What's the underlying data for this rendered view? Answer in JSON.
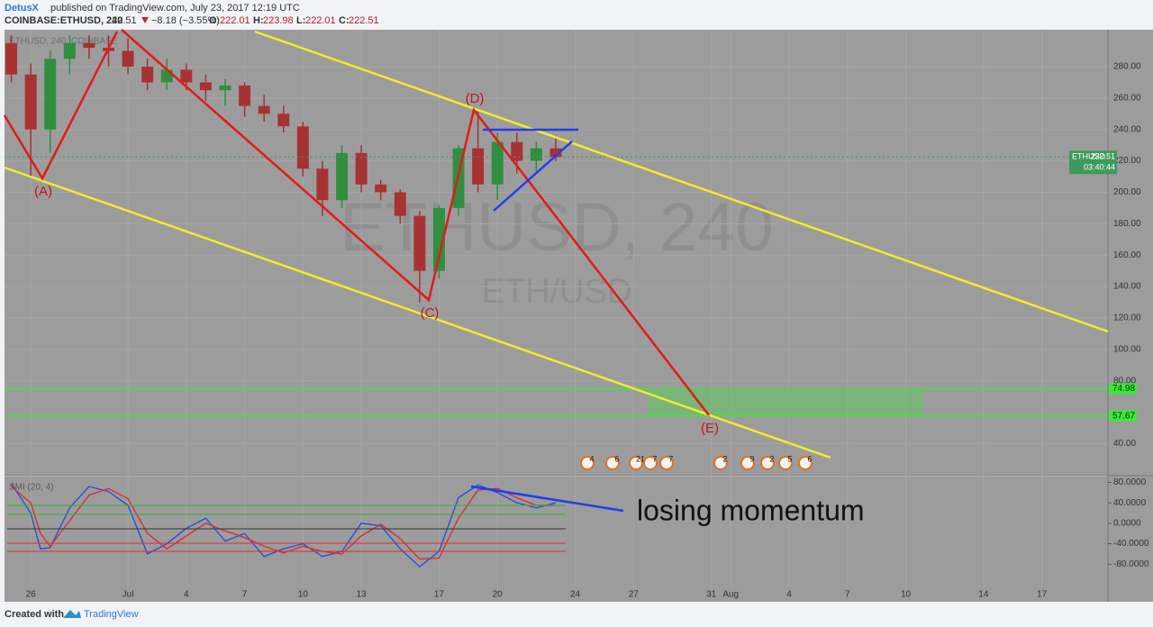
{
  "header": {
    "author": "DetusX",
    "published": "published on TradingView.com, July 23, 2017 12:19 UTC",
    "symbol": "COINBASE:ETHUSD, 240",
    "last": "222.51",
    "change": "−8.18 (−3.55%)",
    "o_label": "O:",
    "o": "222.01",
    "h_label": "H:",
    "h": "223.98",
    "l_label": "L:",
    "l": "222.01",
    "c_label": "C:",
    "c": "222.51"
  },
  "chart_data": [
    {
      "type": "candlestick",
      "legend": "ETHUSD, 240, COINBASE",
      "watermark": "ETHUSD, 240",
      "watermark_sub": "ETH/USD",
      "x": [
        -1,
        0,
        1,
        2,
        3,
        4,
        5,
        6,
        7,
        8,
        9,
        10,
        11,
        12,
        13,
        14,
        15,
        16,
        17,
        18,
        19,
        20,
        21,
        22,
        23,
        24,
        25,
        26,
        27
      ],
      "open": [
        295,
        275,
        240,
        285,
        295,
        292,
        290,
        280,
        270,
        278,
        270,
        265,
        268,
        255,
        250,
        242,
        215,
        195,
        225,
        205,
        200,
        185,
        150,
        190,
        228,
        205,
        232,
        220,
        228
      ],
      "high": [
        300,
        282,
        290,
        300,
        300,
        300,
        298,
        285,
        285,
        282,
        275,
        272,
        270,
        262,
        255,
        245,
        220,
        230,
        230,
        208,
        202,
        188,
        192,
        230,
        253,
        238,
        238,
        232,
        236
      ],
      "low": [
        270,
        210,
        225,
        275,
        285,
        280,
        275,
        265,
        265,
        265,
        258,
        255,
        248,
        245,
        238,
        210,
        185,
        190,
        200,
        195,
        180,
        130,
        145,
        185,
        200,
        195,
        212,
        212,
        220
      ],
      "close": [
        275,
        240,
        285,
        295,
        292,
        290,
        280,
        270,
        278,
        270,
        265,
        268,
        255,
        250,
        242,
        215,
        195,
        225,
        205,
        200,
        185,
        150,
        190,
        228,
        205,
        232,
        220,
        228,
        222.51
      ],
      "up_color": "#2f8f3f",
      "down_color": "#a83232",
      "xlim": [
        -1.35,
        55.4
      ],
      "ylim": [
        19.6,
        303.5
      ],
      "yticks": [
        {
          "value": 280,
          "label": "280.00"
        },
        {
          "value": 260,
          "label": "260.00"
        },
        {
          "value": 240,
          "label": "240.00"
        },
        {
          "value": 220,
          "label": "220.00"
        },
        {
          "value": 200,
          "label": "200.00"
        },
        {
          "value": 180,
          "label": "180.00"
        },
        {
          "value": 160,
          "label": "160.00"
        },
        {
          "value": 140,
          "label": "140.00"
        },
        {
          "value": 120,
          "label": "120.00"
        },
        {
          "value": 100,
          "label": "100.00"
        },
        {
          "value": 80,
          "label": "80.00"
        },
        {
          "value": 40,
          "label": "40.00"
        }
      ],
      "xticks": [
        {
          "value": 0,
          "label": "26"
        },
        {
          "value": 5,
          "label": "Jul"
        },
        {
          "value": 8,
          "label": "4"
        },
        {
          "value": 11,
          "label": "7"
        },
        {
          "value": 14,
          "label": "10"
        },
        {
          "value": 17,
          "label": "13"
        },
        {
          "value": 21,
          "label": "17"
        },
        {
          "value": 24,
          "label": "20"
        },
        {
          "value": 28,
          "label": "24"
        },
        {
          "value": 31,
          "label": "27"
        },
        {
          "value": 35,
          "label": "31"
        },
        {
          "value": 36,
          "label": "Aug"
        },
        {
          "value": 39,
          "label": "4"
        },
        {
          "value": 42,
          "label": "7"
        },
        {
          "value": 45,
          "label": "10"
        },
        {
          "value": 49,
          "label": "14"
        },
        {
          "value": 52,
          "label": "17"
        }
      ],
      "last_price": {
        "symbol": "ETHUSD",
        "value": 222.51,
        "countdown": "03:40:44",
        "color": "#3d9a5a"
      },
      "levels": [
        {
          "value": 74.98,
          "color": "#33ee33"
        },
        {
          "value": 57.67,
          "color": "#33ee33"
        }
      ],
      "annotations": {
        "A": "(A)",
        "C": "(C)",
        "D": "(D)",
        "E": "(E)"
      },
      "events": [
        [
          "4",
          "6",
          "21",
          "7",
          "7"
        ],
        [
          "2",
          "9",
          "2",
          "5",
          "6"
        ]
      ]
    },
    {
      "type": "line",
      "title": "SMI (20, 4)",
      "x": [
        -1,
        0,
        0.5,
        1,
        2,
        3,
        4,
        5,
        6,
        7,
        8,
        9,
        10,
        11,
        12,
        13,
        14,
        15,
        16,
        17,
        18,
        19,
        20,
        21,
        22,
        23,
        24,
        25,
        26,
        27
      ],
      "series": [
        {
          "name": "SMI",
          "color": "#2b4fd8",
          "values": [
            78,
            20,
            -50,
            -48,
            30,
            72,
            62,
            35,
            -60,
            -40,
            -10,
            10,
            -35,
            -20,
            -65,
            -50,
            -40,
            -65,
            -55,
            0,
            -5,
            -50,
            -85,
            -55,
            50,
            75,
            60,
            40,
            30,
            40
          ]
        },
        {
          "name": "Signal",
          "color": "#d83030",
          "values": [
            72,
            40,
            -20,
            -45,
            5,
            55,
            68,
            48,
            -20,
            -50,
            -25,
            0,
            -15,
            -28,
            -45,
            -58,
            -45,
            -55,
            -60,
            -25,
            -2,
            -30,
            -70,
            -68,
            10,
            65,
            68,
            50,
            35,
            35
          ]
        }
      ],
      "ylim": [
        -125.3,
        91.3
      ],
      "yticks": [
        {
          "value": 80,
          "label": "80.0000"
        },
        {
          "value": 40,
          "label": "40.0000"
        },
        {
          "value": 0,
          "label": "0.0000"
        },
        {
          "value": -40,
          "label": "-40.0000"
        },
        {
          "value": -80,
          "label": "-80.0000"
        }
      ],
      "annotation": "losing momentum"
    }
  ],
  "footer": {
    "created": "Created with",
    "brand": "TradingView"
  }
}
